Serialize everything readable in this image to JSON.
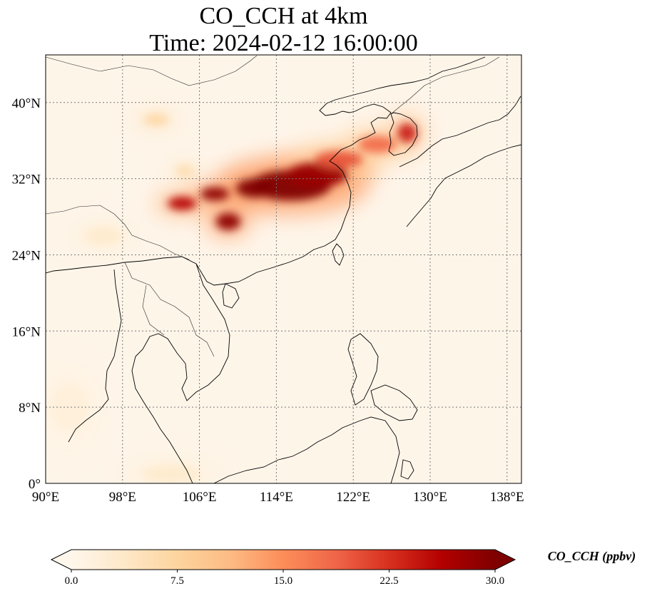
{
  "title": {
    "line1": "CO_CCH at 4km",
    "line2": "Time: 2024-02-12 16:00:00"
  },
  "map": {
    "extent": {
      "lon": [
        90,
        139.5
      ],
      "lat": [
        0,
        45
      ]
    },
    "lon_ticks": [
      {
        "value": 90,
        "label": "90°E"
      },
      {
        "value": 98,
        "label": "98°E"
      },
      {
        "value": 106,
        "label": "106°E"
      },
      {
        "value": 114,
        "label": "114°E"
      },
      {
        "value": 122,
        "label": "122°E"
      },
      {
        "value": 130,
        "label": "130°E"
      },
      {
        "value": 138,
        "label": "138°E"
      }
    ],
    "lat_ticks": [
      {
        "value": 0,
        "label": "0°"
      },
      {
        "value": 8,
        "label": "8°N"
      },
      {
        "value": 16,
        "label": "16°N"
      },
      {
        "value": 24,
        "label": "24°N"
      },
      {
        "value": 32,
        "label": "32°N"
      },
      {
        "value": 40,
        "label": "40°N"
      }
    ],
    "gridlines": true,
    "colormap": "OrRd",
    "background_color": "#fef5e9",
    "plume_color": "#7f0000",
    "blobs": [
      {
        "lon": 115.5,
        "lat": 31.3,
        "rx": 4.2,
        "ry": 1.6,
        "value": 30
      },
      {
        "lon": 118.2,
        "lat": 32.4,
        "rx": 3.2,
        "ry": 1.3,
        "value": 28
      },
      {
        "lon": 111.8,
        "lat": 31.0,
        "rx": 2.0,
        "ry": 1.0,
        "value": 30
      },
      {
        "lon": 107.6,
        "lat": 30.4,
        "rx": 1.5,
        "ry": 0.7,
        "value": 29
      },
      {
        "lon": 104.2,
        "lat": 29.4,
        "rx": 1.5,
        "ry": 0.7,
        "value": 26
      },
      {
        "lon": 109.0,
        "lat": 27.5,
        "rx": 1.3,
        "ry": 0.9,
        "value": 29
      },
      {
        "lon": 120.5,
        "lat": 34.0,
        "rx": 2.5,
        "ry": 0.9,
        "value": 20
      },
      {
        "lon": 124.5,
        "lat": 35.6,
        "rx": 2.0,
        "ry": 0.9,
        "value": 18
      },
      {
        "lon": 127.6,
        "lat": 36.8,
        "rx": 1.0,
        "ry": 1.0,
        "value": 24
      },
      {
        "lon": 101.5,
        "lat": 38.2,
        "rx": 1.3,
        "ry": 0.6,
        "value": 7
      },
      {
        "lon": 104.5,
        "lat": 32.8,
        "rx": 1.0,
        "ry": 0.6,
        "value": 6
      },
      {
        "lon": 96.0,
        "lat": 26.0,
        "rx": 2.0,
        "ry": 1.0,
        "value": 3
      },
      {
        "lon": 92.5,
        "lat": 8.0,
        "rx": 2.0,
        "ry": 2.5,
        "value": 2
      },
      {
        "lon": 103.0,
        "lat": 1.0,
        "rx": 3.0,
        "ry": 1.0,
        "value": 3
      }
    ]
  },
  "colorbar": {
    "ticks": [
      {
        "value": 0,
        "label": "0.0"
      },
      {
        "value": 7.5,
        "label": "7.5"
      },
      {
        "value": 15,
        "label": "15.0"
      },
      {
        "value": 22.5,
        "label": "22.5"
      },
      {
        "value": 30,
        "label": "30.0"
      }
    ],
    "range": [
      0,
      30
    ],
    "label": "CO_CCH (ppbv)",
    "colors": [
      "#fff7ec",
      "#fee8c8",
      "#fdd49e",
      "#fdbb84",
      "#fc8d59",
      "#ef6548",
      "#d7301f",
      "#b30000",
      "#7f0000"
    ]
  }
}
